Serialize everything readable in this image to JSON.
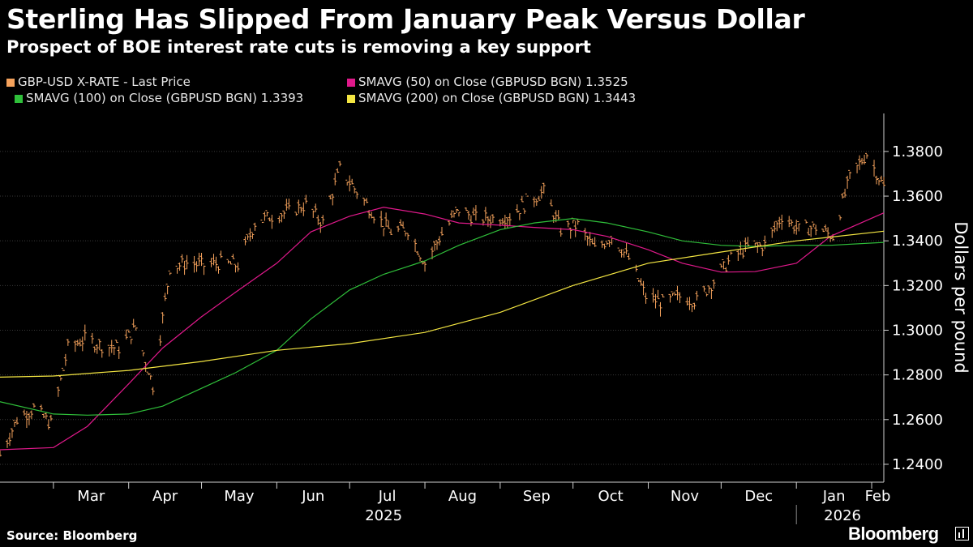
{
  "header": {
    "title": "Sterling Has Slipped From January Peak Versus Dollar",
    "subtitle": "Prospect of BOE interest rate cuts is removing a key support"
  },
  "legend": [
    {
      "label": "GBP-USD X-RATE - Last Price",
      "color": "#f5a25c"
    },
    {
      "label": "SMAVG (50)  on Close (GBPUSD BGN)  1.3525",
      "color": "#e0198b"
    },
    {
      "label": "SMAVG (100)  on Close (GBPUSD BGN) 1.3393",
      "color": "#2fbf3a"
    },
    {
      "label": "SMAVG (200)  on Close (GBPUSD BGN) 1.3443",
      "color": "#f4e642"
    }
  ],
  "footer": {
    "source": "Source: Bloomberg",
    "brand": "Bloomberg"
  },
  "chart_data": {
    "type": "line",
    "title": "Sterling Has Slipped From January Peak Versus Dollar",
    "subtitle": "Prospect of BOE interest rate cuts is removing a key support",
    "ylabel": "Dollars per pound",
    "ylim": [
      1.232,
      1.397
    ],
    "yticks": [
      1.24,
      1.26,
      1.28,
      1.3,
      1.32,
      1.34,
      1.36,
      1.38
    ],
    "ytick_labels": [
      "1.2400",
      "1.2600",
      "1.2800",
      "1.3000",
      "1.3200",
      "1.3400",
      "1.3600",
      "1.3800"
    ],
    "x_months": [
      "Mar",
      "Apr",
      "May",
      "Jun",
      "Jul",
      "Aug",
      "Sep",
      "Oct",
      "Nov",
      "Dec",
      "Jan",
      "Feb"
    ],
    "x_years": [
      "2025",
      "2026"
    ],
    "grid": true,
    "legend_position": "top",
    "x_range": [
      "2025-02-07",
      "2026-02-06"
    ],
    "series": [
      {
        "name": "GBP-USD X-RATE - Last Price",
        "kind": "price_bars",
        "color": "#f5a25c",
        "x": [
          "2025-02-07",
          "2025-02-14",
          "2025-02-21",
          "2025-02-28",
          "2025-03-07",
          "2025-03-14",
          "2025-03-21",
          "2025-03-28",
          "2025-04-04",
          "2025-04-11",
          "2025-04-18",
          "2025-04-25",
          "2025-05-02",
          "2025-05-09",
          "2025-05-16",
          "2025-05-23",
          "2025-05-30",
          "2025-06-06",
          "2025-06-13",
          "2025-06-20",
          "2025-06-27",
          "2025-07-04",
          "2025-07-11",
          "2025-07-18",
          "2025-07-25",
          "2025-08-01",
          "2025-08-08",
          "2025-08-15",
          "2025-08-22",
          "2025-08-29",
          "2025-09-05",
          "2025-09-12",
          "2025-09-19",
          "2025-09-26",
          "2025-10-03",
          "2025-10-10",
          "2025-10-17",
          "2025-10-24",
          "2025-10-31",
          "2025-11-07",
          "2025-11-14",
          "2025-11-21",
          "2025-11-28",
          "2025-12-05",
          "2025-12-12",
          "2025-12-19",
          "2025-12-26",
          "2026-01-02",
          "2026-01-09",
          "2026-01-16",
          "2026-01-23",
          "2026-01-30",
          "2026-02-06"
        ],
        "values": [
          1.244,
          1.26,
          1.265,
          1.258,
          1.292,
          1.296,
          1.293,
          1.292,
          1.301,
          1.275,
          1.328,
          1.33,
          1.329,
          1.33,
          1.329,
          1.348,
          1.351,
          1.353,
          1.356,
          1.348,
          1.372,
          1.362,
          1.352,
          1.344,
          1.345,
          1.33,
          1.343,
          1.354,
          1.35,
          1.35,
          1.351,
          1.357,
          1.362,
          1.345,
          1.347,
          1.336,
          1.342,
          1.332,
          1.315,
          1.312,
          1.315,
          1.313,
          1.322,
          1.332,
          1.337,
          1.338,
          1.351,
          1.345,
          1.346,
          1.342,
          1.368,
          1.379,
          1.364
        ]
      },
      {
        "name": "SMAVG (50)  on Close (GBPUSD BGN)  1.3525",
        "color": "#e0198b",
        "x": [
          "2025-02-07",
          "2025-03-01",
          "2025-03-15",
          "2025-04-01",
          "2025-04-15",
          "2025-05-01",
          "2025-05-15",
          "2025-06-01",
          "2025-06-15",
          "2025-07-01",
          "2025-07-15",
          "2025-08-01",
          "2025-08-15",
          "2025-09-01",
          "2025-09-15",
          "2025-10-01",
          "2025-10-15",
          "2025-11-01",
          "2025-11-15",
          "2025-12-01",
          "2025-12-15",
          "2026-01-01",
          "2026-01-15",
          "2026-02-06"
        ],
        "values": [
          1.2465,
          1.2475,
          1.257,
          1.276,
          1.292,
          1.306,
          1.317,
          1.33,
          1.344,
          1.351,
          1.355,
          1.352,
          1.348,
          1.347,
          1.346,
          1.345,
          1.342,
          1.336,
          1.33,
          1.326,
          1.3262,
          1.33,
          1.342,
          1.3525
        ]
      },
      {
        "name": "SMAVG (100)  on Close (GBPUSD BGN) 1.3393",
        "color": "#2fbf3a",
        "x": [
          "2025-02-07",
          "2025-03-01",
          "2025-03-15",
          "2025-04-01",
          "2025-04-15",
          "2025-05-01",
          "2025-05-15",
          "2025-06-01",
          "2025-06-15",
          "2025-07-01",
          "2025-07-15",
          "2025-08-01",
          "2025-08-15",
          "2025-09-01",
          "2025-09-15",
          "2025-10-01",
          "2025-10-15",
          "2025-11-01",
          "2025-11-15",
          "2025-12-01",
          "2025-12-15",
          "2026-01-01",
          "2026-01-15",
          "2026-02-06"
        ],
        "values": [
          1.268,
          1.2625,
          1.262,
          1.2625,
          1.266,
          1.274,
          1.281,
          1.291,
          1.305,
          1.318,
          1.325,
          1.331,
          1.338,
          1.345,
          1.348,
          1.35,
          1.348,
          1.344,
          1.34,
          1.338,
          1.3375,
          1.338,
          1.338,
          1.3393
        ]
      },
      {
        "name": "SMAVG (200)  on Close (GBPUSD BGN) 1.3443",
        "color": "#f4e642",
        "x": [
          "2025-02-07",
          "2025-03-01",
          "2025-04-01",
          "2025-05-01",
          "2025-06-01",
          "2025-07-01",
          "2025-08-01",
          "2025-09-01",
          "2025-10-01",
          "2025-11-01",
          "2025-12-01",
          "2026-01-01",
          "2026-02-06"
        ],
        "values": [
          1.279,
          1.2795,
          1.282,
          1.286,
          1.291,
          1.294,
          1.299,
          1.308,
          1.32,
          1.33,
          1.335,
          1.34,
          1.3443
        ]
      }
    ]
  }
}
